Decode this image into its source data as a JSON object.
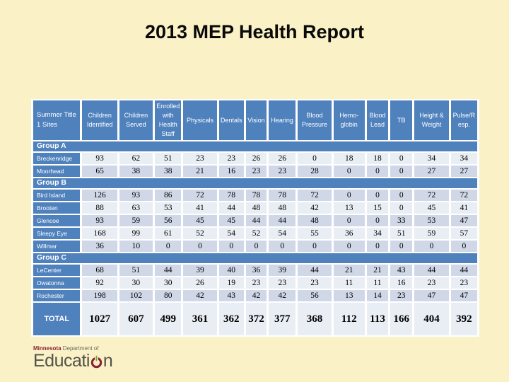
{
  "page": {
    "title": "2013 MEP Health Report",
    "background_color": "#FAF2C6"
  },
  "theme": {
    "accent_blue": "#4F81BD",
    "row_band_light": "#E9EDF4",
    "row_band_dark": "#D0D8E8",
    "grid_white": "#FFFFFF",
    "logo_maroon": "#8A2333",
    "logo_green": "#7EA43C",
    "logo_gray": "#54524A"
  },
  "table": {
    "columns": [
      "Summer Title 1 Sites",
      "Children Identified",
      "Children Served",
      "Enrolled with Health Staff",
      "Physicals",
      "Dentals",
      "Vision",
      "Hearing",
      "Blood Pressure",
      "Hemo-globin",
      "Blood Lead",
      "TB",
      "Height & Weight",
      "Pulse/Resp."
    ],
    "groups": [
      {
        "label": "Group A",
        "rows": [
          {
            "site": "Breckenridge",
            "band": "light",
            "values": [
              93,
              62,
              51,
              23,
              23,
              26,
              26,
              0,
              18,
              18,
              0,
              34,
              34
            ]
          },
          {
            "site": "Moorhead",
            "band": "dark",
            "values": [
              65,
              38,
              38,
              21,
              16,
              23,
              23,
              28,
              0,
              0,
              0,
              27,
              27
            ]
          }
        ]
      },
      {
        "label": "Group B",
        "rows": [
          {
            "site": "Bird Island",
            "band": "dark",
            "values": [
              126,
              93,
              86,
              72,
              78,
              78,
              78,
              72,
              0,
              0,
              0,
              72,
              72
            ]
          },
          {
            "site": "Brooten",
            "band": "light",
            "values": [
              88,
              63,
              53,
              41,
              44,
              48,
              48,
              42,
              13,
              15,
              0,
              45,
              41
            ]
          },
          {
            "site": "Glencoe",
            "band": "dark",
            "values": [
              93,
              59,
              56,
              45,
              45,
              44,
              44,
              48,
              0,
              0,
              33,
              53,
              47
            ]
          },
          {
            "site": "Sleepy Eye",
            "band": "light",
            "values": [
              168,
              99,
              61,
              52,
              54,
              52,
              54,
              55,
              36,
              34,
              51,
              59,
              57
            ]
          },
          {
            "site": "Willmar",
            "band": "dark",
            "values": [
              36,
              10,
              0,
              0,
              0,
              0,
              0,
              0,
              0,
              0,
              0,
              0,
              0
            ]
          }
        ]
      },
      {
        "label": "Group C",
        "rows": [
          {
            "site": "LeCenter",
            "band": "dark",
            "values": [
              68,
              51,
              44,
              39,
              40,
              36,
              39,
              44,
              21,
              21,
              43,
              44,
              44
            ]
          },
          {
            "site": "Owatonna",
            "band": "light",
            "values": [
              92,
              30,
              30,
              26,
              19,
              23,
              23,
              23,
              11,
              11,
              16,
              23,
              23
            ]
          },
          {
            "site": "Rochester",
            "band": "dark",
            "values": [
              198,
              102,
              80,
              42,
              43,
              42,
              42,
              56,
              13,
              14,
              23,
              47,
              47
            ]
          }
        ]
      }
    ],
    "total": {
      "label": "TOTAL",
      "values": [
        1027,
        607,
        499,
        361,
        362,
        372,
        377,
        368,
        112,
        113,
        166,
        404,
        392
      ]
    }
  },
  "logo": {
    "line1_brand": "Minnesota",
    "line1_rest": " Department of",
    "line2_pre": "Educati",
    "line2_post": "n"
  }
}
